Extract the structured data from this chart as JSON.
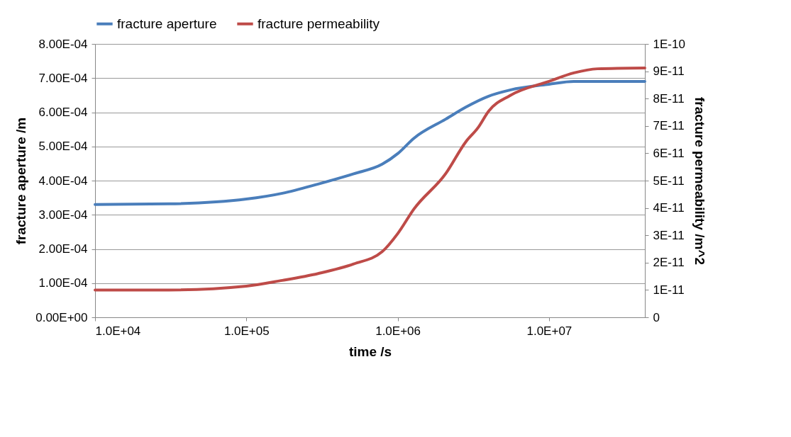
{
  "chart_data": {
    "type": "line",
    "xlabel": "time /s",
    "ylabel": "fracture aperture /m",
    "y2label": "fracture permeability /m^2",
    "log": "x",
    "grid": "y",
    "legend": "top",
    "marker": "none",
    "line_style": "solid",
    "xlim": [
      10000,
      43000000
    ],
    "xticks": [
      {
        "value": 10000,
        "label": "1.0E+04"
      },
      {
        "value": 100000,
        "label": "1.0E+05"
      },
      {
        "value": 1000000,
        "label": "1.0E+06"
      },
      {
        "value": 10000000,
        "label": "1.0E+07"
      }
    ],
    "ylim": [
      0,
      0.0008
    ],
    "yticks": [
      {
        "value": 0,
        "label": "0.00E+00"
      },
      {
        "value": 0.0001,
        "label": "1.00E-04"
      },
      {
        "value": 0.0002,
        "label": "2.00E-04"
      },
      {
        "value": 0.0003,
        "label": "3.00E-04"
      },
      {
        "value": 0.0004,
        "label": "4.00E-04"
      },
      {
        "value": 0.0005,
        "label": "5.00E-04"
      },
      {
        "value": 0.0006,
        "label": "6.00E-04"
      },
      {
        "value": 0.0007,
        "label": "7.00E-04"
      },
      {
        "value": 0.0008,
        "label": "8.00E-04"
      }
    ],
    "y2lim": [
      0,
      1e-10
    ],
    "y2ticks": [
      {
        "value": 0,
        "label": "0"
      },
      {
        "value": 1e-11,
        "label": "1E-11"
      },
      {
        "value": 2e-11,
        "label": "2E-11"
      },
      {
        "value": 3e-11,
        "label": "3E-11"
      },
      {
        "value": 4e-11,
        "label": "4E-11"
      },
      {
        "value": 5e-11,
        "label": "5E-11"
      },
      {
        "value": 6e-11,
        "label": "6E-11"
      },
      {
        "value": 7e-11,
        "label": "7E-11"
      },
      {
        "value": 8e-11,
        "label": "8E-11"
      },
      {
        "value": 9e-11,
        "label": "9E-11"
      },
      {
        "value": 1e-10,
        "label": "1E-10"
      }
    ],
    "series": [
      {
        "name": "fracture aperture",
        "color": "#4a7ebb",
        "x": [
          10000,
          30800,
          100000,
          173000,
          298000,
          512000,
          790000,
          1000000,
          1280000,
          2080000,
          2820000,
          3990000,
          5520000,
          10000000,
          14600000,
          43000000
        ],
        "values": [
          0.00033,
          0.000332,
          0.000346,
          0.000363,
          0.00039,
          0.00042,
          0.000448,
          0.000479,
          0.000524,
          0.00058,
          0.000615,
          0.000647,
          0.000665,
          0.000682,
          0.00069,
          0.00069
        ]
      },
      {
        "name": "fracture permeability",
        "color": "#be4b48",
        "axis": "y2",
        "x": [
          10000,
          30800,
          100000,
          173000,
          298000,
          512000,
          790000,
          1000000,
          1280000,
          2080000,
          2820000,
          3400000,
          3990000,
          5520000,
          10000000,
          14600000,
          20900000,
          43000000
        ],
        "values": [
          1e-11,
          1e-11,
          1.14e-11,
          1.35e-11,
          1.6e-11,
          1.95e-11,
          2.4e-11,
          3.06e-11,
          3.96e-11,
          5.26e-11,
          6.42e-11,
          6.94e-11,
          7.54e-11,
          8.11e-11,
          8.63e-11,
          8.94e-11,
          9.09e-11,
          9.12e-11
        ]
      }
    ]
  }
}
